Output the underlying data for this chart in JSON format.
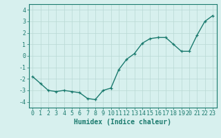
{
  "x": [
    0,
    1,
    2,
    3,
    4,
    5,
    6,
    7,
    8,
    9,
    10,
    11,
    12,
    13,
    14,
    15,
    16,
    17,
    18,
    19,
    20,
    21,
    22,
    23
  ],
  "y": [
    -1.8,
    -2.4,
    -3.0,
    -3.1,
    -3.0,
    -3.1,
    -3.2,
    -3.7,
    -3.8,
    -3.0,
    -2.8,
    -1.2,
    -0.3,
    0.2,
    1.1,
    1.5,
    1.6,
    1.6,
    1.0,
    0.4,
    0.4,
    1.8,
    3.0,
    3.5
  ],
  "xlabel": "Humidex (Indice chaleur)",
  "ylim": [
    -4.5,
    4.5
  ],
  "xlim": [
    -0.5,
    23.5
  ],
  "yticks": [
    -4,
    -3,
    -2,
    -1,
    0,
    1,
    2,
    3,
    4
  ],
  "xticks": [
    0,
    1,
    2,
    3,
    4,
    5,
    6,
    7,
    8,
    9,
    10,
    11,
    12,
    13,
    14,
    15,
    16,
    17,
    18,
    19,
    20,
    21,
    22,
    23
  ],
  "line_color": "#1a7a6e",
  "marker_color": "#1a7a6e",
  "bg_color": "#d7f0ee",
  "grid_color": "#b8d8d4",
  "axis_color": "#1a7a6e",
  "font_color": "#1a7a6e",
  "xlabel_fontsize": 7,
  "tick_fontsize": 6,
  "linewidth": 1.0,
  "markersize": 3.0
}
